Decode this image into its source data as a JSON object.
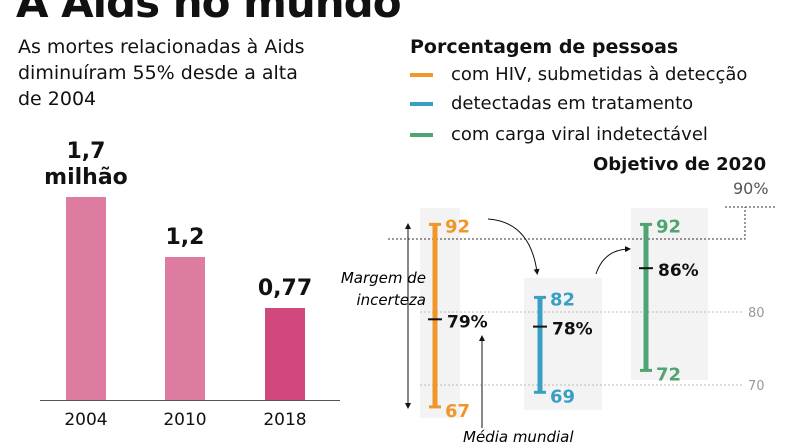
{
  "title": "A Aids no mundo",
  "left": {
    "subtitle": "As mortes relacionadas à Aids diminuíram 55% desde a alta de 2004"
  },
  "right": {
    "legend_title": "Porcentagem de pessoas",
    "legend": [
      {
        "label": "com HIV, submetidas à detecção",
        "color": "#f0962a"
      },
      {
        "label": "detectadas em tratamento",
        "color": "#3aa0c3"
      },
      {
        "label": "com carga viral indetectável",
        "color": "#4ea472"
      }
    ],
    "goal_label": "Objetivo de 2020",
    "goal_value": "90%",
    "margin_label": [
      "Margem de",
      "incerteza"
    ],
    "mean_label": "Média mundial"
  },
  "chart_data": [
    {
      "type": "bar",
      "categories": [
        "2004",
        "2010",
        "2018"
      ],
      "values": [
        1.7,
        1.2,
        0.77
      ],
      "data_labels": [
        "1,7 milhão",
        "1,2",
        "0,77"
      ],
      "colors": [
        "#dd7ba0",
        "#dd7ba0",
        "#d1487f"
      ],
      "ylim": [
        0,
        1.7
      ]
    },
    {
      "type": "errorbar",
      "ylim": [
        65,
        90
      ],
      "yticks": [
        70,
        80
      ],
      "target": 90,
      "series": [
        {
          "name": "com HIV, submetidas à detecção",
          "mean": 79,
          "low": 67,
          "high": 92,
          "mean_label": "79%",
          "color": "#f0962a"
        },
        {
          "name": "detectadas em tratamento",
          "mean": 78,
          "low": 69,
          "high": 82,
          "mean_label": "78%",
          "color": "#3aa0c3"
        },
        {
          "name": "com carga viral indetectável",
          "mean": 86,
          "low": 72,
          "high": 92,
          "mean_label": "86%",
          "color": "#4ea472"
        }
      ]
    }
  ]
}
